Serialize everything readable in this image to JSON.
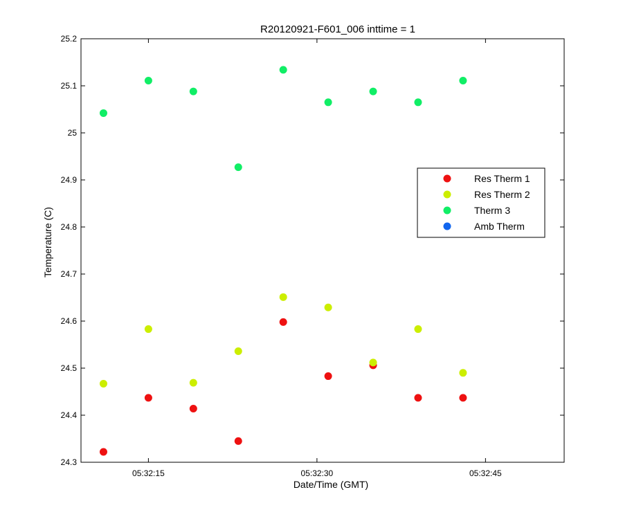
{
  "chart_data": {
    "type": "scatter",
    "title": "R20120921-F601_006 inttime = 1",
    "xlabel": "Date/Time (GMT)",
    "ylabel": "Temperature (C)",
    "xlim": [
      "05:32:09",
      "05:32:52"
    ],
    "ylim": [
      24.3,
      25.2
    ],
    "x_ticks": [
      "05:32:15",
      "05:32:30",
      "05:32:45"
    ],
    "y_ticks": [
      "24.3",
      "24.4",
      "24.5",
      "24.6",
      "24.7",
      "24.8",
      "24.9",
      "25",
      "25.1",
      "25.2"
    ],
    "grid": false,
    "legend_position": "right-middle",
    "x": [
      "05:32:11",
      "05:32:15",
      "05:32:19",
      "05:32:23",
      "05:32:27",
      "05:32:31",
      "05:32:35",
      "05:32:39",
      "05:32:43"
    ],
    "series": [
      {
        "name": "Res Therm 1",
        "color": "#ee1111",
        "values": [
          24.322,
          24.437,
          24.414,
          24.345,
          24.598,
          24.483,
          24.506,
          24.437,
          24.437
        ]
      },
      {
        "name": "Res Therm 2",
        "color": "#ccee00",
        "values": [
          24.467,
          24.583,
          24.469,
          24.536,
          24.651,
          24.629,
          24.512,
          24.583,
          24.49
        ]
      },
      {
        "name": "Therm 3",
        "color": "#11ee66",
        "values": [
          25.042,
          25.111,
          25.088,
          24.927,
          25.134,
          25.065,
          25.088,
          25.065,
          25.111
        ]
      },
      {
        "name": "Amb Therm",
        "color": "#1166ee",
        "values": []
      }
    ]
  }
}
